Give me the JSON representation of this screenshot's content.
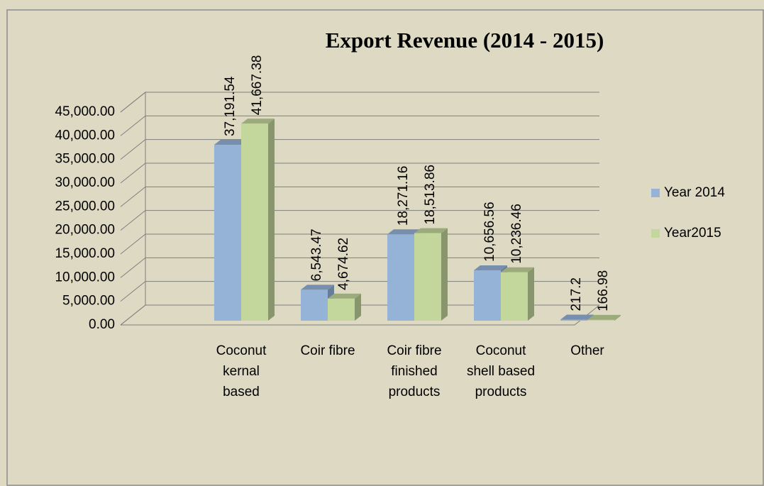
{
  "chart_data": {
    "type": "bar3d",
    "title": "Export Revenue (2014 - 2015)",
    "categories": [
      "Coconut kernal based",
      "Coir fibre",
      "Coir fibre finished products",
      "Coconut shell based products",
      "Other"
    ],
    "series": [
      {
        "name": "Year 2014",
        "color": "#95b3d7",
        "values": [
          37191.54,
          6543.47,
          18271.16,
          10656.56,
          217.2
        ],
        "value_labels": [
          "37,191.54",
          "6,543.47",
          "18,271.16",
          "10,656.56",
          "217.2"
        ]
      },
      {
        "name": "Year2015",
        "color": "#c3d69b",
        "values": [
          41667.38,
          4674.62,
          18513.86,
          10236.46,
          166.98
        ],
        "value_labels": [
          "41,667.38",
          "4,674.62",
          "18,513.86",
          "10,236.46",
          "166.98"
        ]
      }
    ],
    "ylim": [
      0,
      45000
    ],
    "yticks": [
      {
        "value": 0,
        "label": "0.00"
      },
      {
        "value": 5000,
        "label": "5,000.00"
      },
      {
        "value": 10000,
        "label": "10,000.00"
      },
      {
        "value": 15000,
        "label": "15,000.00"
      },
      {
        "value": 20000,
        "label": "20,000.00"
      },
      {
        "value": 25000,
        "label": "25,000.00"
      },
      {
        "value": 30000,
        "label": "30,000.00"
      },
      {
        "value": 35000,
        "label": "35,000.00"
      },
      {
        "value": 40000,
        "label": "40,000.00"
      },
      {
        "value": 45000,
        "label": "45,000.00"
      }
    ],
    "grid": true,
    "legend": "right"
  }
}
